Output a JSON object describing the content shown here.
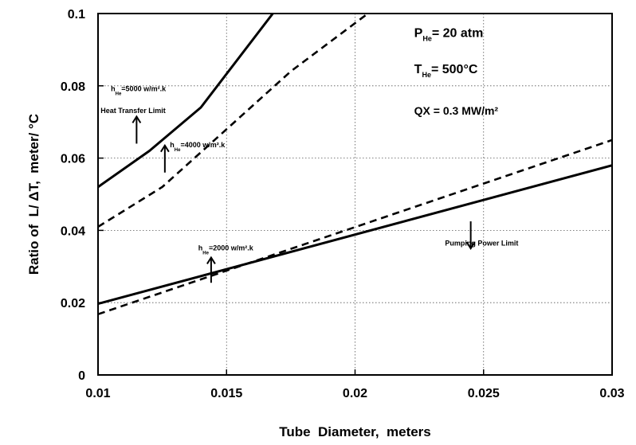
{
  "chart_data": {
    "type": "line",
    "xlabel": "Tube  Diameter,  meters",
    "ylabel": "Ratio of  L/ ΔT,  meter/ °C",
    "xlim": [
      0.01,
      0.03
    ],
    "ylim": [
      0,
      0.1
    ],
    "x_ticks": [
      "0.01",
      "0.015",
      "0.02",
      "0.025",
      "0.03"
    ],
    "y_ticks": [
      "0",
      "0.02",
      "0.04",
      "0.06",
      "0.08",
      "0.1"
    ],
    "grid": true,
    "series": [
      {
        "style": "solid",
        "points": [
          [
            0.01,
            0.052
          ],
          [
            0.012,
            0.062
          ],
          [
            0.014,
            0.074
          ],
          [
            0.0168,
            0.1
          ]
        ]
      },
      {
        "style": "dashed",
        "points": [
          [
            0.01,
            0.041
          ],
          [
            0.0125,
            0.052
          ],
          [
            0.015,
            0.068
          ],
          [
            0.0175,
            0.084
          ],
          [
            0.0205,
            0.1
          ]
        ]
      },
      {
        "style": "solid",
        "points": [
          [
            0.01,
            0.0197
          ],
          [
            0.03,
            0.058
          ]
        ]
      },
      {
        "style": "dashed",
        "points": [
          [
            0.01,
            0.0168
          ],
          [
            0.03,
            0.065
          ]
        ]
      }
    ],
    "annotations": {
      "p_he": {
        "main": "P",
        "sub": "He",
        "rest": "= 20  atm",
        "x": 0.0223,
        "y": 0.0935
      },
      "t_he": {
        "main": "T",
        "sub": "He",
        "rest": "=  500°C",
        "x": 0.0223,
        "y": 0.0835
      },
      "qx": {
        "text": "QX  =  0.3  MW/m²",
        "x": 0.0223,
        "y": 0.072
      },
      "h5000": {
        "main": "h",
        "sub": "He",
        "rest": "=5000 w/m².k",
        "x": 0.0105,
        "y": 0.0785
      },
      "heat_limit": {
        "text": "Heat   Transfer   Limit",
        "x": 0.0101,
        "y": 0.0725
      },
      "h4000": {
        "main": "h",
        "sub": "He",
        "rest": "=4000 w/m².k",
        "x": 0.0128,
        "y": 0.063
      },
      "h2000": {
        "main": "h",
        "sub": "He",
        "rest": "=2000 w/m².k",
        "x": 0.0139,
        "y": 0.0345
      },
      "pump_limit": {
        "text": "Pumping   Power   Limit",
        "x": 0.0235,
        "y": 0.0358
      }
    },
    "arrows": [
      {
        "x": 0.0115,
        "y_from": 0.064,
        "y_to": 0.0715
      },
      {
        "x": 0.0126,
        "y_from": 0.056,
        "y_to": 0.0635
      },
      {
        "x": 0.0144,
        "y_from": 0.0255,
        "y_to": 0.0325
      },
      {
        "x": 0.0245,
        "y_from": 0.0425,
        "y_to": 0.035
      }
    ]
  }
}
